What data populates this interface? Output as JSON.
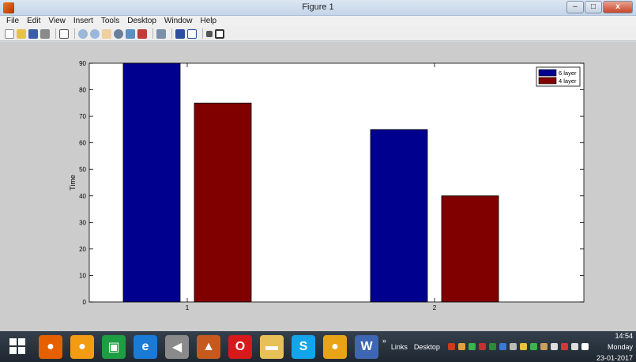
{
  "window": {
    "title": "Figure 1",
    "controls": {
      "minimize": "–",
      "maximize": "□",
      "close": "x"
    }
  },
  "menu": [
    "File",
    "Edit",
    "View",
    "Insert",
    "Tools",
    "Desktop",
    "Window",
    "Help"
  ],
  "toolbar": {
    "icons": [
      "new-figure-icon",
      "open-file-icon",
      "save-icon",
      "print-icon",
      "edit-plot-icon",
      "zoom-in-icon",
      "zoom-out-icon",
      "pan-icon",
      "rotate-3d-icon",
      "data-cursor-icon",
      "brush-icon",
      "link-plot-icon",
      "colorbar-icon",
      "legend-icon",
      "hide-plot-tools-icon",
      "show-plot-tools-icon"
    ]
  },
  "chart_data": {
    "type": "bar",
    "categories": [
      "1",
      "2"
    ],
    "series": [
      {
        "name": "6 layer",
        "values": [
          90,
          65
        ],
        "color": "#00008f"
      },
      {
        "name": "4 layer",
        "values": [
          75,
          40
        ],
        "color": "#800000"
      }
    ],
    "ylabel": "Time",
    "xlabel": "",
    "ylim": [
      0,
      90
    ],
    "yticks": [
      0,
      10,
      20,
      30,
      40,
      50,
      60,
      70,
      80,
      90
    ],
    "legend_position": "top-right",
    "grid": false
  },
  "taskbar": {
    "apps": [
      {
        "name": "firefox-icon",
        "color": "#e66000"
      },
      {
        "name": "ubuntu-icon",
        "color": "#f39c12"
      },
      {
        "name": "store-icon",
        "color": "#1e9e43"
      },
      {
        "name": "ie-icon",
        "color": "#1a7bd6"
      },
      {
        "name": "speaker-icon",
        "color": "#8a8a8a"
      },
      {
        "name": "matlab-icon",
        "color": "#c65a1e"
      },
      {
        "name": "opera-icon",
        "color": "#d8191b"
      },
      {
        "name": "file-explorer-icon",
        "color": "#e7c157"
      },
      {
        "name": "skype-icon",
        "color": "#12a5ec"
      },
      {
        "name": "chrome-icon",
        "color": "#e8a317"
      },
      {
        "name": "word-icon",
        "color": "#3f66b3"
      }
    ],
    "tray_labels": {
      "links": "Links",
      "desktop": "Desktop",
      "chevron": "»"
    },
    "clock": {
      "time": "14:54",
      "day": "Monday",
      "date": "23-01-2017"
    }
  }
}
